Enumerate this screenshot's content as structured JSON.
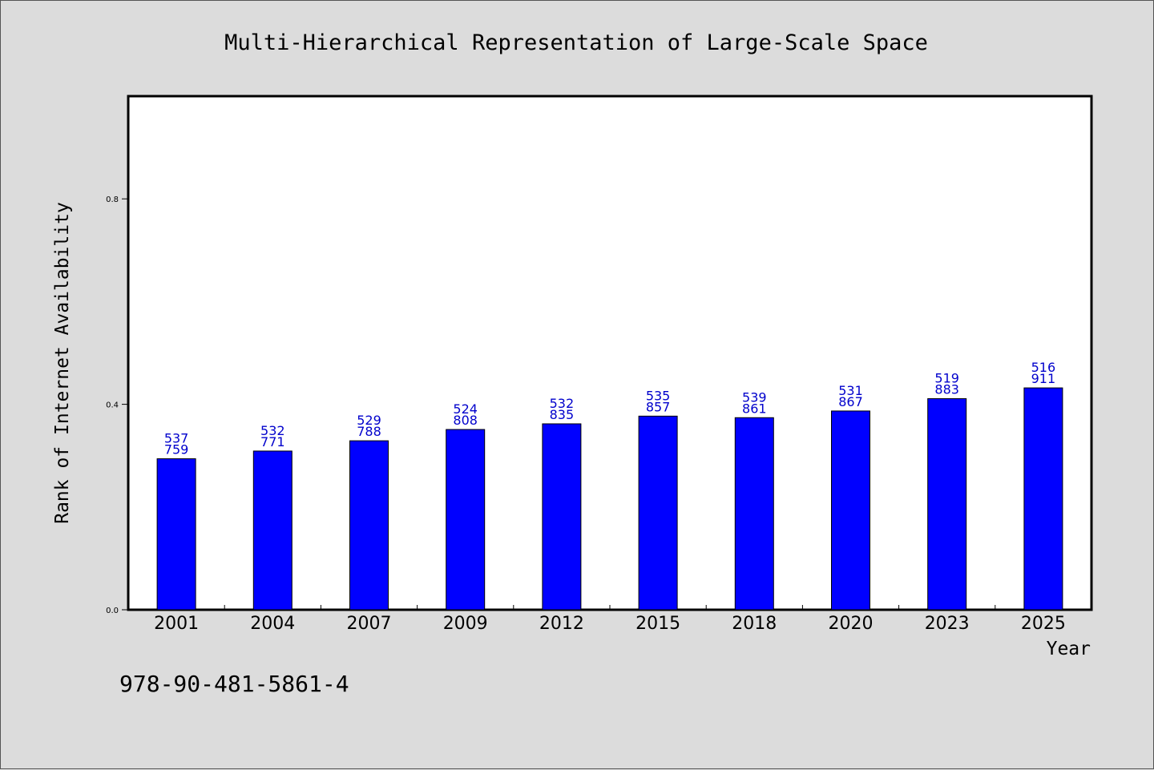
{
  "chart_data": {
    "type": "bar",
    "title": "Multi-Hierarchical Representation of Large-Scale Space",
    "xlabel": "Year",
    "ylabel": "Rank of Internet Availability",
    "categories": [
      "2001",
      "2004",
      "2007",
      "2009",
      "2012",
      "2015",
      "2018",
      "2020",
      "2023",
      "2025"
    ],
    "values": [
      0.294,
      0.309,
      0.329,
      0.351,
      0.362,
      0.377,
      0.374,
      0.387,
      0.411,
      0.432
    ],
    "labels_top": [
      "537",
      "532",
      "529",
      "524",
      "532",
      "535",
      "539",
      "531",
      "519",
      "516"
    ],
    "labels_bottom": [
      "759",
      "771",
      "788",
      "808",
      "835",
      "857",
      "861",
      "867",
      "883",
      "911"
    ],
    "ylim": [
      0,
      1.0
    ],
    "yticks": [
      0.0,
      0.4,
      0.8
    ],
    "ytick_labels": [
      "0.0",
      "0.4",
      "0.8"
    ],
    "grid": false,
    "bar_color": "#0000ff",
    "label_color": "#0000cc"
  },
  "footer_code": "978-90-481-5861-4"
}
